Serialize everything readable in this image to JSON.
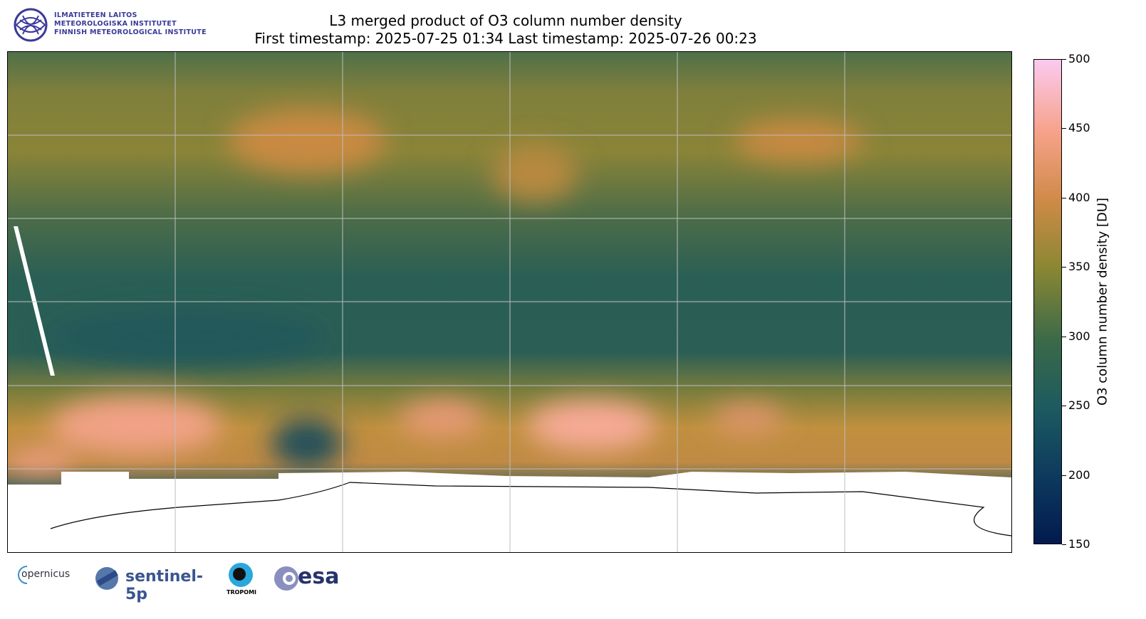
{
  "header": {
    "title": "L3 merged product of O3 column number density",
    "subtitle": "First timestamp: 2025-07-25 01:34   Last timestamp: 2025-07-26 00:23"
  },
  "institute_logo": {
    "lines": [
      "ILMATIETEEN LAITOS",
      "METEOROLOGISKA INSTITUTET",
      "FINNISH METEOROLOGICAL INSTITUTE"
    ],
    "color": "#3a3a9a"
  },
  "map": {
    "projection": "plate carree, global",
    "gridlines": true,
    "lon_gridlines": [
      -120,
      -60,
      0,
      60,
      120
    ],
    "lat_gridlines": [
      60,
      30,
      0,
      -30,
      -60
    ],
    "no_data_color": "#ffffff"
  },
  "colorbar": {
    "label": "O3 column number density [DU]",
    "range": [
      150,
      500
    ],
    "ticks": [
      "150",
      "200",
      "250",
      "300",
      "350",
      "400",
      "450",
      "500"
    ],
    "colors": [
      "#021a4f",
      "#0d3a5e",
      "#1d5a60",
      "#3b6a48",
      "#8a8733",
      "#d08a48",
      "#f6a28a",
      "#fbcaf0"
    ]
  },
  "footer_logos": {
    "copernicus": "opernicus",
    "sentinel": "sentinel-5p",
    "tropomi": "TROPOMI",
    "esa": "esa"
  }
}
